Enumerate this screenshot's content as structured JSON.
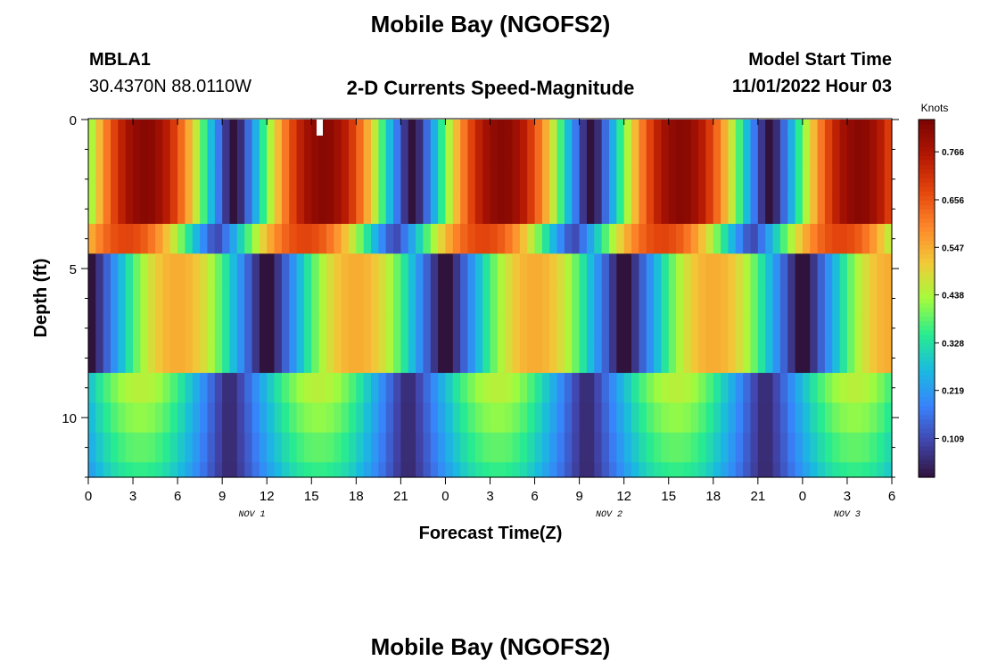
{
  "header": {
    "title": "Mobile Bay (NGOFS2)",
    "station_id": "MBLA1",
    "station_coords": "30.4370N  88.0110W",
    "plot_subtitle": "2-D Currents Speed-Magnitude",
    "model_start_label": "Model Start Time",
    "model_start_value": "11/01/2022 Hour 03"
  },
  "footer": {
    "title": "Mobile Bay (NGOFS2)"
  },
  "chart_data": {
    "type": "heatmap",
    "title": "2-D Currents Speed-Magnitude",
    "xlabel": "Forecast Time(Z)",
    "ylabel": "Depth (ft)",
    "x_tick_labels": [
      "0",
      "3",
      "6",
      "9",
      "12",
      "15",
      "18",
      "21",
      "0",
      "3",
      "6",
      "9",
      "12",
      "15",
      "18",
      "21",
      "0",
      "3",
      "6"
    ],
    "x_hours": [
      0,
      3,
      6,
      9,
      12,
      15,
      18,
      21,
      24,
      27,
      30,
      33,
      36,
      39,
      42,
      45,
      48,
      51,
      54
    ],
    "xlim_hours": [
      0,
      54
    ],
    "date_labels": [
      {
        "label": "NOV 1",
        "hour": 11
      },
      {
        "label": "NOV 2",
        "hour": 35
      },
      {
        "label": "NOV 3",
        "hour": 51
      }
    ],
    "y_ticks": [
      0,
      5,
      10
    ],
    "ylim": [
      0,
      12
    ],
    "y_inverted": true,
    "depth_levels_ft": [
      0,
      1,
      2,
      3,
      4,
      5,
      6,
      7,
      8,
      9,
      10,
      11,
      12
    ],
    "colorbar": {
      "unit": "Knots",
      "tick_values": [
        0.109,
        0.219,
        0.328,
        0.438,
        0.547,
        0.656,
        0.766
      ],
      "tick_labels": [
        "0.109",
        "0.219",
        "0.328",
        "0.438",
        "0.547",
        "0.656",
        "0.766"
      ],
      "range": [
        0.02,
        0.84
      ],
      "colormap": "turbo"
    },
    "speed_profile_by_depth": [
      {
        "depth_min": 0,
        "depth_max": 3.3,
        "amplitude": 0.82,
        "phase_hours": -2.8,
        "offset": 0.0
      },
      {
        "depth_min": 3.3,
        "depth_max": 5.0,
        "amplitude": 0.58,
        "phase_hours": -1.6,
        "offset": 0.1
      },
      {
        "depth_min": 5.0,
        "depth_max": 9.0,
        "amplitude": 0.55,
        "phase_hours": 7.0,
        "offset": 0.0
      },
      {
        "depth_min": 9.0,
        "depth_max": 12.0,
        "amplitude": 0.4,
        "phase_hours": 9.5,
        "offset": 0.05
      }
    ]
  }
}
